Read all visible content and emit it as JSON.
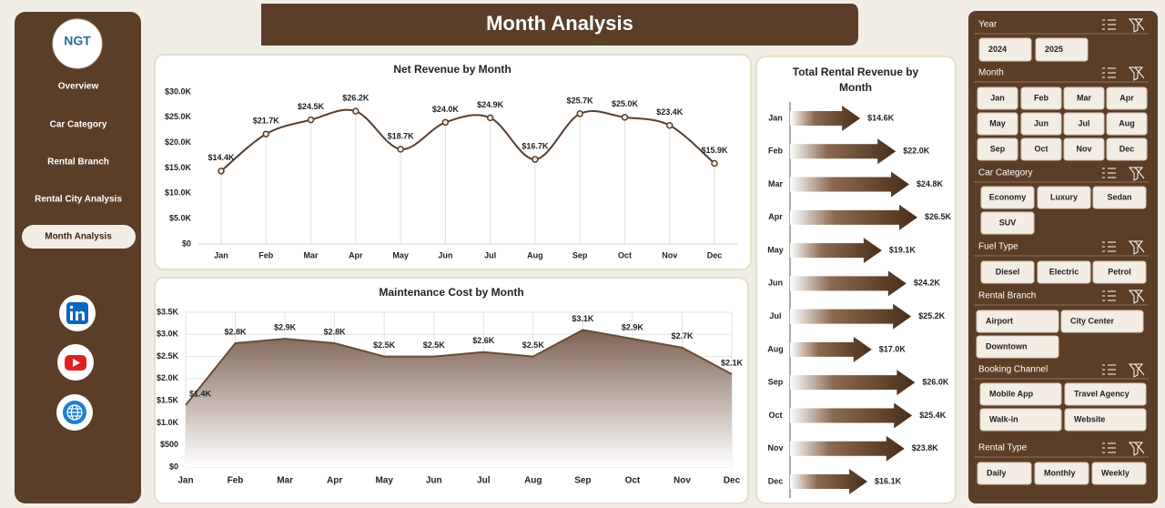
{
  "header": {
    "title": "Month Analysis"
  },
  "sidebar": {
    "logo": "NGT",
    "nav": [
      {
        "label": "Overview"
      },
      {
        "label": "Car Category"
      },
      {
        "label": "Rental Branch"
      },
      {
        "label": "Rental City Analysis"
      },
      {
        "label": "Month Analysis",
        "selected": true
      }
    ]
  },
  "chart_data": [
    {
      "type": "line",
      "title": "Net Revenue by Month",
      "color": "#5a3e2b",
      "categories": [
        "Jan",
        "Feb",
        "Mar",
        "Apr",
        "May",
        "Jun",
        "Jul",
        "Aug",
        "Sep",
        "Oct",
        "Nov",
        "Dec"
      ],
      "values": [
        14400,
        21700,
        24500,
        26200,
        18700,
        24000,
        24900,
        16700,
        25700,
        25000,
        23400,
        15900
      ],
      "value_labels": [
        "$14.4K",
        "$21.7K",
        "$24.5K",
        "$26.2K",
        "$18.7K",
        "$24.0K",
        "$24.9K",
        "$16.7K",
        "$25.7K",
        "$25.0K",
        "$23.4K",
        "$15.9K"
      ],
      "ylim": [
        0,
        30000
      ],
      "yticks": [
        {
          "value": 0,
          "label": "$0"
        },
        {
          "value": 5000,
          "label": "$5.0K"
        },
        {
          "value": 10000,
          "label": "$10.0K"
        },
        {
          "value": 15000,
          "label": "$15.0K"
        },
        {
          "value": 20000,
          "label": "$20.0K"
        },
        {
          "value": 25000,
          "label": "$25.0K"
        },
        {
          "value": 30000,
          "label": "$30.0K"
        }
      ]
    },
    {
      "type": "area",
      "title": "Maintenance Cost by Month",
      "color": "#6b4b36",
      "grid": true,
      "categories": [
        "Jan",
        "Feb",
        "Mar",
        "Apr",
        "May",
        "Jun",
        "Jul",
        "Aug",
        "Sep",
        "Oct",
        "Nov",
        "Dec"
      ],
      "values": [
        1400,
        2800,
        2900,
        2800,
        2500,
        2500,
        2600,
        2500,
        3100,
        2900,
        2700,
        2100
      ],
      "value_labels": [
        "$1.4K",
        "$2.8K",
        "$2.9K",
        "$2.8K",
        "$2.5K",
        "$2.5K",
        "$2.6K",
        "$2.5K",
        "$3.1K",
        "$2.9K",
        "$2.7K",
        "$2.1K"
      ],
      "ylim": [
        0,
        3500
      ],
      "yticks": [
        {
          "value": 0,
          "label": "$0"
        },
        {
          "value": 500,
          "label": "$500"
        },
        {
          "value": 1000,
          "label": "$1.0K"
        },
        {
          "value": 1500,
          "label": "$1.5K"
        },
        {
          "value": 2000,
          "label": "$2.0K"
        },
        {
          "value": 2500,
          "label": "$2.5K"
        },
        {
          "value": 3000,
          "label": "$3.0K"
        },
        {
          "value": 3500,
          "label": "$3.5K"
        }
      ]
    },
    {
      "type": "bar",
      "orientation": "horizontal",
      "title": "Total Rental Revenue by Month",
      "color": "#5a3a20",
      "categories": [
        "Jan",
        "Feb",
        "Mar",
        "Apr",
        "May",
        "Jun",
        "Jul",
        "Aug",
        "Sep",
        "Oct",
        "Nov",
        "Dec"
      ],
      "values": [
        14600,
        22000,
        24800,
        26500,
        19100,
        24200,
        25200,
        17000,
        26000,
        25400,
        23800,
        16100
      ],
      "value_labels": [
        "$14.6K",
        "$22.0K",
        "$24.8K",
        "$26.5K",
        "$19.1K",
        "$24.2K",
        "$25.2K",
        "$17.0K",
        "$26.0K",
        "$25.4K",
        "$23.8K",
        "$16.1K"
      ]
    }
  ],
  "slicers": [
    {
      "title": "Year",
      "items": [
        "2024",
        "2025"
      ]
    },
    {
      "title": "Month",
      "items": [
        "Jan",
        "Feb",
        "Mar",
        "Apr",
        "May",
        "Jun",
        "Jul",
        "Aug",
        "Sep",
        "Oct",
        "Nov",
        "Dec"
      ]
    },
    {
      "title": "Car Category",
      "items": [
        "Economy",
        "Luxury",
        "Sedan",
        "SUV"
      ]
    },
    {
      "title": "Fuel Type",
      "items": [
        "Diesel",
        "Electric",
        "Petrol"
      ]
    },
    {
      "title": "Rental Branch",
      "items": [
        "Airport",
        "City Center",
        "Downtown"
      ]
    },
    {
      "title": "Booking Channel",
      "items": [
        "Mobile App",
        "Travel Agency",
        "Walk-in",
        "Website"
      ]
    },
    {
      "title": "Rental Type",
      "items": [
        "Daily",
        "Monthly",
        "Weekly"
      ]
    }
  ]
}
